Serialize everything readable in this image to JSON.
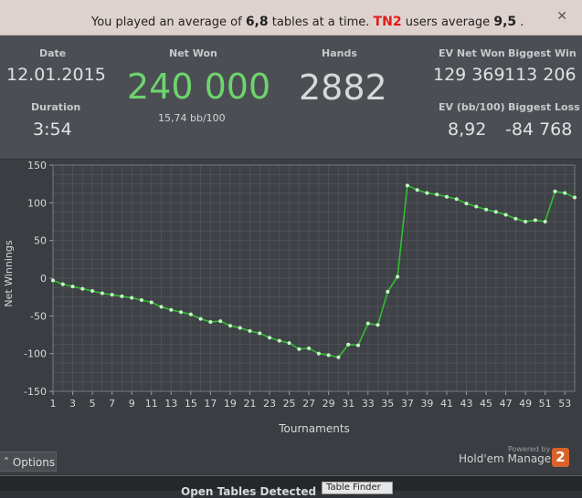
{
  "banner": {
    "prefix": "You played an average of",
    "tables_avg": "6,8",
    "middle": "tables at a time.",
    "site": "TN2",
    "users_text": "users average",
    "users_avg": "9,5",
    "suffix": ".",
    "close_glyph": "✕"
  },
  "stats": {
    "date_label": "Date",
    "date_value": "12.01.2015",
    "duration_label": "Duration",
    "duration_value": "3:54",
    "netwon_label": "Net Won",
    "netwon_value": "240 000",
    "bb_value": "15,74 bb/100",
    "hands_label": "Hands",
    "hands_value": "2882",
    "ev_net_won_label": "EV Net Won",
    "ev_net_won_value": "129 369",
    "biggest_win_label": "Biggest Win",
    "biggest_win_value": "113 206",
    "ev_bb_label": "EV (bb/100)",
    "ev_bb_value": "8,92",
    "biggest_loss_label": "Biggest Loss",
    "biggest_loss_value": "-84 768"
  },
  "colors": {
    "net_won": "#6ed46e",
    "line": "#2fbf2f",
    "point": "#c8f5c8"
  },
  "chart_data": {
    "type": "line",
    "title": "",
    "xlabel": "Tournaments",
    "ylabel": "Net Winnings",
    "xlim": [
      1,
      54
    ],
    "ylim": [
      -150,
      150
    ],
    "x_ticks": [
      1,
      3,
      5,
      7,
      9,
      11,
      13,
      15,
      17,
      19,
      21,
      23,
      25,
      27,
      29,
      31,
      33,
      35,
      37,
      39,
      41,
      43,
      45,
      47,
      49,
      51,
      53
    ],
    "y_ticks": [
      -150,
      -100,
      -50,
      0,
      50,
      100,
      150
    ],
    "grid": true,
    "series": [
      {
        "x": [
          1,
          2,
          3,
          4,
          5,
          6,
          7,
          8,
          9,
          10,
          11,
          12,
          13,
          14,
          15,
          16,
          17,
          18,
          19,
          20,
          21,
          22,
          23,
          24,
          25,
          26,
          27,
          28,
          29,
          30,
          31,
          32,
          33,
          34,
          35,
          36,
          37,
          38,
          39,
          40,
          41,
          42,
          43,
          44,
          45,
          46,
          47,
          48,
          49,
          50,
          51,
          52,
          53,
          54
        ],
        "values": [
          -3,
          -8,
          -11,
          -14,
          -17,
          -20,
          -22,
          -24,
          -26,
          -29,
          -32,
          -38,
          -42,
          -45,
          -48,
          -54,
          -58,
          -57,
          -63,
          -66,
          -70,
          -73,
          -79,
          -83,
          -86,
          -94,
          -93,
          -100,
          -102,
          -105,
          -88,
          -89,
          -60,
          -62,
          -18,
          2,
          123,
          117,
          113,
          111,
          108,
          105,
          99,
          95,
          91,
          88,
          84,
          79,
          75,
          77,
          75,
          115,
          113,
          107
        ]
      }
    ]
  },
  "footer": {
    "options_label": "Options",
    "options_glyph": "˄",
    "powered_by": "Powered by",
    "brand": "Hold'em Manager",
    "logo": "2",
    "bottom_label": "Open Tables Detected",
    "bottom_button": "Table Finder"
  }
}
